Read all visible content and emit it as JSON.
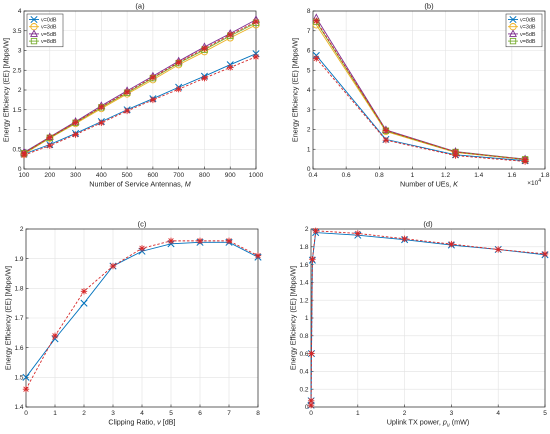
{
  "chart_data": [
    {
      "type": "line",
      "panel": "(a)",
      "xlabel": "Number of Service Antennas,",
      "xlabel_var": "M",
      "ylabel": "Energy Efficiency (EE) [Mbps/W]",
      "xlim": [
        100,
        1000
      ],
      "ylim": [
        0,
        4
      ],
      "xticks": [
        100,
        200,
        300,
        400,
        500,
        600,
        700,
        800,
        900,
        1000
      ],
      "yticks": [
        0,
        0.5,
        1,
        1.5,
        2,
        2.5,
        3,
        3.5,
        4
      ],
      "ytick_labels": [
        "0",
        "0.5",
        "1",
        "1.5",
        "2",
        "2.5",
        "3",
        "3.5",
        "4"
      ],
      "grid": true,
      "legend": "top-left",
      "x": [
        100,
        200,
        300,
        400,
        500,
        600,
        700,
        800,
        900,
        1000
      ],
      "series": [
        {
          "name": "ν=0dB",
          "color": "#0072BD",
          "marker": "x",
          "values": [
            0.38,
            0.62,
            0.9,
            1.2,
            1.5,
            1.78,
            2.07,
            2.35,
            2.64,
            2.92
          ]
        },
        {
          "name": "ν=3dB",
          "color": "#EDB120",
          "marker": "o",
          "values": [
            0.38,
            0.78,
            1.15,
            1.53,
            1.9,
            2.26,
            2.64,
            2.97,
            3.32,
            3.65
          ]
        },
        {
          "name": "ν=5dB",
          "color": "#7E2F8E",
          "marker": "triangle",
          "values": [
            0.42,
            0.81,
            1.2,
            1.6,
            1.98,
            2.35,
            2.73,
            3.09,
            3.43,
            3.78
          ]
        },
        {
          "name": "ν=8dB",
          "color": "#77AC30",
          "marker": "square",
          "values": [
            0.4,
            0.79,
            1.17,
            1.56,
            1.93,
            2.3,
            2.68,
            3.02,
            3.37,
            3.7
          ]
        }
      ],
      "dashed_series": [
        {
          "color": "#D62728",
          "marker": "star",
          "values": [
            0.35,
            0.59,
            0.87,
            1.17,
            1.47,
            1.75,
            2.02,
            2.3,
            2.57,
            2.84
          ]
        },
        {
          "color": "#D62728",
          "marker": "star",
          "values": [
            0.4,
            0.8,
            1.18,
            1.57,
            1.95,
            2.32,
            2.7,
            3.05,
            3.4,
            3.73
          ]
        }
      ]
    },
    {
      "type": "line",
      "panel": "(b)",
      "xlabel": "Number of UEs,",
      "xlabel_var": "K",
      "ylabel": "Energy Efficiency (EE) [Mbps/W]",
      "xlim": [
        0.4,
        1.8
      ],
      "ylim": [
        0,
        8
      ],
      "xticks": [
        0.4,
        0.6,
        0.8,
        1,
        1.2,
        1.4,
        1.6,
        1.8
      ],
      "xtick_labels": [
        "0.4",
        "0.6",
        "0.8",
        "1",
        "1.2",
        "1.4",
        "1.6",
        "1.8"
      ],
      "x_exponent": "×10",
      "x_exponent_power": "4",
      "yticks": [
        0,
        1,
        2,
        3,
        4,
        5,
        6,
        7,
        8
      ],
      "grid": true,
      "legend": "top-right",
      "x": [
        0.42,
        0.84,
        1.26,
        1.68
      ],
      "series": [
        {
          "name": "ν=0dB",
          "color": "#0072BD",
          "marker": "x",
          "values": [
            5.75,
            1.5,
            0.72,
            0.42
          ]
        },
        {
          "name": "ν=3dB",
          "color": "#EDB120",
          "marker": "o",
          "values": [
            7.3,
            1.9,
            0.84,
            0.48
          ]
        },
        {
          "name": "ν=5dB",
          "color": "#7E2F8E",
          "marker": "triangle",
          "values": [
            7.65,
            1.98,
            0.88,
            0.5
          ]
        },
        {
          "name": "ν=8dB",
          "color": "#77AC30",
          "marker": "square",
          "values": [
            7.45,
            1.94,
            0.86,
            0.49
          ]
        }
      ],
      "dashed_series": [
        {
          "color": "#D62728",
          "marker": "star",
          "values": [
            5.6,
            1.46,
            0.68,
            0.38
          ]
        },
        {
          "color": "#D62728",
          "marker": "star",
          "values": [
            7.5,
            1.95,
            0.86,
            0.48
          ]
        }
      ]
    },
    {
      "type": "line",
      "panel": "(c)",
      "xlabel": "Clipping Ratio,",
      "xlabel_var": "ν",
      "xlabel_unit": "[dB]",
      "ylabel": "Energy Efficiency (EE) [Mbps/W]",
      "xlim": [
        0,
        8
      ],
      "ylim": [
        1.4,
        2
      ],
      "xticks": [
        0,
        1,
        2,
        3,
        4,
        5,
        6,
        7,
        8
      ],
      "yticks": [
        1.4,
        1.5,
        1.6,
        1.7,
        1.8,
        1.9,
        2
      ],
      "ytick_labels": [
        "1.4",
        "1.5",
        "1.6",
        "1.7",
        "1.8",
        "1.9",
        "2"
      ],
      "grid": true,
      "x": [
        0,
        1,
        2,
        3,
        4,
        5,
        6,
        7,
        8
      ],
      "series": [
        {
          "color": "#0072BD",
          "marker": "x",
          "values": [
            1.5,
            1.63,
            1.75,
            1.875,
            1.925,
            1.95,
            1.955,
            1.955,
            1.905
          ]
        }
      ],
      "dashed_series": [
        {
          "color": "#D62728",
          "marker": "star",
          "values": [
            1.46,
            1.64,
            1.79,
            1.875,
            1.935,
            1.96,
            1.96,
            1.96,
            1.91
          ]
        }
      ]
    },
    {
      "type": "line",
      "panel": "(d)",
      "xlabel": "Uplink TX power,",
      "xlabel_var": "p",
      "xlabel_sub": "u",
      "xlabel_unit": "(mW)",
      "ylabel": "Energy Efficiency (EE) [Mbps/W]",
      "xlim": [
        0,
        5
      ],
      "ylim": [
        0,
        2
      ],
      "xticks": [
        0,
        1,
        2,
        3,
        4,
        5
      ],
      "yticks": [
        0,
        0.2,
        0.4,
        0.6,
        0.8,
        1,
        1.2,
        1.4,
        1.6,
        1.8,
        2
      ],
      "ytick_labels": [
        "0",
        "0.2",
        "0.4",
        "0.6",
        "0.8",
        "1",
        "1.2",
        "1.4",
        "1.6",
        "1.8",
        "2"
      ],
      "grid": true,
      "x": [
        0.001,
        0.003,
        0.01,
        0.03,
        0.1,
        1,
        2,
        3,
        4,
        5
      ],
      "series": [
        {
          "color": "#0072BD",
          "marker": "x",
          "values": [
            0.02,
            0.07,
            0.6,
            1.65,
            1.96,
            1.93,
            1.88,
            1.82,
            1.77,
            1.71
          ]
        }
      ],
      "dashed_series": [
        {
          "color": "#D62728",
          "marker": "star",
          "values": [
            0.02,
            0.07,
            0.6,
            1.66,
            1.98,
            1.95,
            1.89,
            1.83,
            1.77,
            1.72
          ]
        }
      ]
    }
  ]
}
